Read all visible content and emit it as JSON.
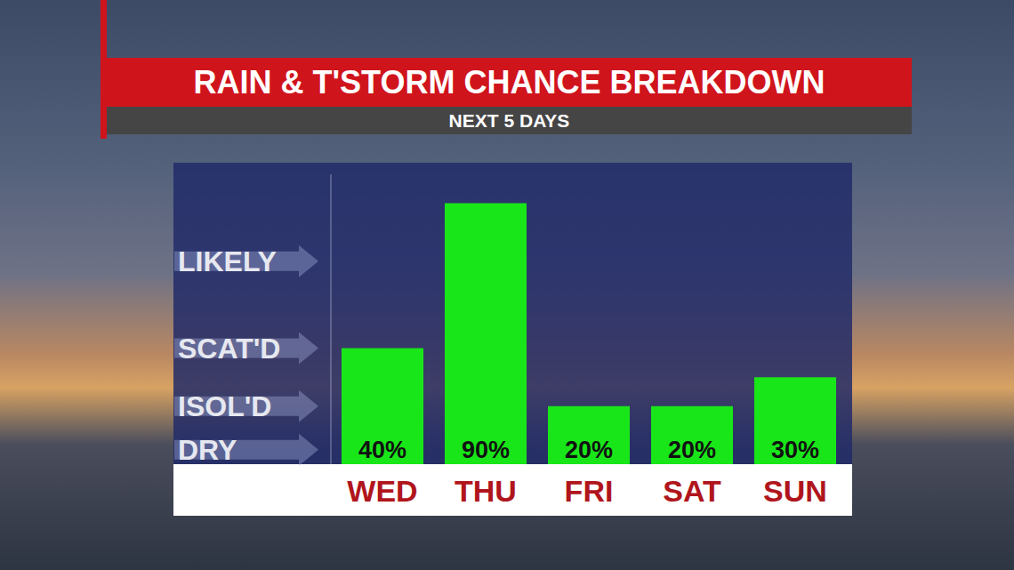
{
  "chart_data": {
    "type": "bar",
    "title": "RAIN & T'STORM CHANCE BREAKDOWN",
    "subtitle": "NEXT 5 DAYS",
    "categories": [
      "WED",
      "THU",
      "FRI",
      "SAT",
      "SUN"
    ],
    "values": [
      40,
      90,
      20,
      20,
      30
    ],
    "value_labels": [
      "40%",
      "90%",
      "20%",
      "20%",
      "30%"
    ],
    "color": "#19e619",
    "ylim": [
      0,
      100
    ],
    "yticks": [
      {
        "value": 5,
        "label": "DRY"
      },
      {
        "value": 20,
        "label": "ISOL'D"
      },
      {
        "value": 40,
        "label": "SCAT'D"
      },
      {
        "value": 70,
        "label": "LIKELY"
      }
    ],
    "grid": false,
    "data_labels": true
  }
}
